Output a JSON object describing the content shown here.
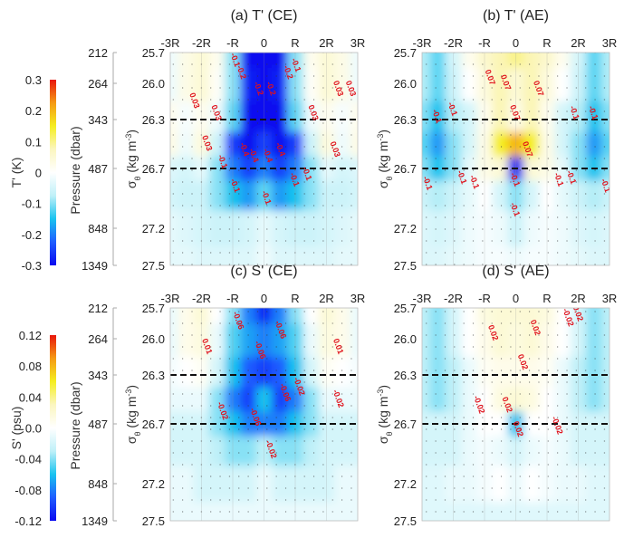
{
  "colormap": [
    "#0a0af0",
    "#1f5cff",
    "#19c3ef",
    "#bff0f8",
    "#ffffff",
    "#fbf6c0",
    "#f5ee20",
    "#f59a14",
    "#e8160c"
  ],
  "pressure_axis": {
    "label": "Pressure (dbar)",
    "ticks": [
      "212",
      "264",
      "343",
      "487",
      "848",
      "1349"
    ]
  },
  "sigma_axis": {
    "label": "σ",
    "sub": "θ",
    "unit": " (kg m",
    "sup": "-3",
    "close": ")",
    "ticks": [
      "25.7",
      "26.0",
      "26.3",
      "26.7",
      "27.2",
      "27.5"
    ],
    "values": [
      25.7,
      26.0,
      26.3,
      26.7,
      27.2,
      27.5
    ]
  },
  "x_ticks": [
    "-3R",
    "-2R",
    "-R",
    "0",
    "R",
    "2R",
    "3R"
  ],
  "colorbars": [
    {
      "label": "T' (K)",
      "ticks": [
        "0.3",
        "0.2",
        "0.1",
        "0",
        "-0.1",
        "-0.2",
        "-0.3"
      ],
      "range": [
        -0.3,
        0.3
      ]
    },
    {
      "label": "S' (psu)",
      "ticks": [
        "0.12",
        "0.08",
        "0.04",
        "0.0",
        "-0.04",
        "-0.08",
        "-0.12"
      ],
      "range": [
        -0.12,
        0.12
      ]
    }
  ],
  "chart_data": [
    {
      "type": "heatmap",
      "title": "(a) T' (CE)",
      "clim": [
        -0.3,
        0.3
      ],
      "dashed_levels": [
        26.3,
        26.7
      ],
      "x": [
        -3,
        -2.5,
        -2,
        -1.5,
        -1,
        -0.5,
        0,
        0.5,
        1,
        1.5,
        2,
        2.5,
        3
      ],
      "y": [
        25.7,
        26.0,
        26.3,
        26.5,
        26.7,
        26.9,
        27.2,
        27.5
      ],
      "z": [
        [
          -0.02,
          0.03,
          0.05,
          0.02,
          -0.1,
          -0.3,
          -0.3,
          -0.3,
          -0.1,
          0.02,
          0.05,
          0.03,
          -0.02
        ],
        [
          -0.02,
          0.03,
          0.05,
          0.01,
          -0.1,
          -0.28,
          -0.3,
          -0.28,
          -0.1,
          0.01,
          0.05,
          0.03,
          -0.02
        ],
        [
          0.02,
          -0.01,
          0.02,
          -0.02,
          -0.12,
          -0.3,
          -0.3,
          -0.3,
          -0.12,
          -0.02,
          0.02,
          -0.01,
          0.02
        ],
        [
          0.03,
          -0.02,
          0.04,
          -0.06,
          -0.25,
          -0.3,
          -0.25,
          -0.3,
          -0.25,
          -0.06,
          0.04,
          -0.02,
          0.03
        ],
        [
          -0.04,
          -0.05,
          -0.03,
          -0.1,
          -0.2,
          -0.25,
          -0.2,
          -0.25,
          -0.2,
          -0.1,
          -0.03,
          -0.05,
          -0.04
        ],
        [
          -0.05,
          -0.06,
          -0.06,
          -0.1,
          -0.15,
          -0.18,
          -0.12,
          -0.18,
          -0.15,
          -0.1,
          -0.06,
          -0.06,
          -0.05
        ],
        [
          -0.03,
          -0.04,
          -0.05,
          -0.06,
          -0.06,
          -0.05,
          -0.03,
          -0.05,
          -0.06,
          -0.06,
          -0.05,
          -0.04,
          -0.03
        ],
        [
          -0.03,
          -0.03,
          -0.04,
          -0.04,
          -0.04,
          -0.04,
          -0.02,
          -0.04,
          -0.04,
          -0.04,
          -0.04,
          -0.03,
          -0.03
        ]
      ],
      "contour_labels": [
        {
          "text": "-0.1",
          "x": -1.0,
          "y": 25.78
        },
        {
          "text": "-0.2",
          "x": -0.8,
          "y": 25.9
        },
        {
          "text": "-0.2",
          "x": -0.25,
          "y": 26.05
        },
        {
          "text": "-0.2",
          "x": 0.15,
          "y": 26.05
        },
        {
          "text": "-0.2",
          "x": 0.7,
          "y": 25.9
        },
        {
          "text": "-0.1",
          "x": 0.95,
          "y": 25.83
        },
        {
          "text": "0.03",
          "x": -2.3,
          "y": 26.15
        },
        {
          "text": "0.03",
          "x": -1.6,
          "y": 26.25
        },
        {
          "text": "0.03",
          "x": -1.9,
          "y": 26.5
        },
        {
          "text": "0.03",
          "x": 1.5,
          "y": 26.25
        },
        {
          "text": "0.03",
          "x": 2.3,
          "y": 26.05
        },
        {
          "text": "0.03",
          "x": 2.7,
          "y": 26.05
        },
        {
          "text": "0.03",
          "x": 2.2,
          "y": 26.55
        },
        {
          "text": "-0.4",
          "x": -0.7,
          "y": 26.55
        },
        {
          "text": "-0.4",
          "x": -0.4,
          "y": 26.6
        },
        {
          "text": "-0.4",
          "x": 0.05,
          "y": 26.6
        },
        {
          "text": "-0.4",
          "x": 0.45,
          "y": 26.55
        },
        {
          "text": "-0.1",
          "x": -1.4,
          "y": 26.65
        },
        {
          "text": "-0.1",
          "x": -1.0,
          "y": 26.85
        },
        {
          "text": "-0.1",
          "x": 0.9,
          "y": 26.8
        },
        {
          "text": "-0.1",
          "x": 1.3,
          "y": 26.75
        },
        {
          "text": "-0.1",
          "x": 0.0,
          "y": 26.95
        }
      ]
    },
    {
      "type": "heatmap",
      "title": "(b) T' (AE)",
      "clim": [
        -0.3,
        0.3
      ],
      "dashed_levels": [
        26.3,
        26.7
      ],
      "x": [
        -3,
        -2.5,
        -2,
        -1.5,
        -1,
        -0.5,
        0,
        0.5,
        1,
        1.5,
        2,
        2.5,
        3
      ],
      "y": [
        25.7,
        26.0,
        26.3,
        26.5,
        26.7,
        26.9,
        27.2,
        27.5
      ],
      "z": [
        [
          -0.08,
          -0.12,
          -0.05,
          0.02,
          0.06,
          0.08,
          0.1,
          0.08,
          0.06,
          0.02,
          -0.05,
          -0.12,
          -0.08
        ],
        [
          -0.08,
          -0.12,
          -0.06,
          0,
          0.04,
          0.08,
          0.05,
          0.08,
          0.04,
          0,
          -0.06,
          -0.12,
          -0.08
        ],
        [
          -0.1,
          -0.15,
          -0.08,
          -0.05,
          0.02,
          0.08,
          0.03,
          0.08,
          0.02,
          -0.05,
          -0.08,
          -0.15,
          -0.1
        ],
        [
          -0.12,
          -0.18,
          -0.1,
          -0.05,
          0.03,
          0.15,
          0.2,
          0.15,
          0.03,
          -0.05,
          -0.1,
          -0.18,
          -0.12
        ],
        [
          -0.1,
          -0.15,
          -0.1,
          -0.03,
          0.03,
          0.05,
          -0.3,
          0.05,
          0.03,
          -0.03,
          -0.1,
          -0.15,
          -0.1
        ],
        [
          -0.06,
          -0.08,
          -0.06,
          -0.03,
          0,
          -0.05,
          -0.1,
          -0.05,
          0,
          -0.03,
          -0.06,
          -0.08,
          -0.06
        ],
        [
          -0.04,
          -0.05,
          -0.04,
          -0.02,
          -0.01,
          -0.02,
          -0.06,
          -0.02,
          -0.01,
          -0.02,
          -0.04,
          -0.05,
          -0.04
        ],
        [
          -0.04,
          -0.04,
          -0.03,
          -0.02,
          -0.01,
          -0.01,
          -0.02,
          -0.01,
          -0.01,
          -0.02,
          -0.03,
          -0.04,
          -0.04
        ]
      ],
      "contour_labels": [
        {
          "text": "0.07",
          "x": -0.9,
          "y": 25.95
        },
        {
          "text": "0.07",
          "x": -0.4,
          "y": 26.0
        },
        {
          "text": "0.07",
          "x": 0.65,
          "y": 26.05
        },
        {
          "text": "0.07",
          "x": -0.1,
          "y": 26.25
        },
        {
          "text": "0.07",
          "x": 0.3,
          "y": 26.55
        },
        {
          "text": "-0.1",
          "x": -2.6,
          "y": 26.28
        },
        {
          "text": "-0.1",
          "x": -2.1,
          "y": 26.22
        },
        {
          "text": "-0.1",
          "x": 1.8,
          "y": 26.25
        },
        {
          "text": "-0.1",
          "x": 2.4,
          "y": 26.25
        },
        {
          "text": "-0.1",
          "x": -2.9,
          "y": 26.83
        },
        {
          "text": "-0.1",
          "x": -1.8,
          "y": 26.78
        },
        {
          "text": "-0.1",
          "x": -1.4,
          "y": 26.82
        },
        {
          "text": "-0.1",
          "x": 1.3,
          "y": 26.8
        },
        {
          "text": "-0.1",
          "x": 1.7,
          "y": 26.78
        },
        {
          "text": "-0.1",
          "x": 2.8,
          "y": 26.85
        },
        {
          "text": "-0.1",
          "x": -0.1,
          "y": 26.8
        },
        {
          "text": "-0.1",
          "x": -0.1,
          "y": 27.05
        }
      ]
    },
    {
      "type": "heatmap",
      "title": "(c) S' (CE)",
      "clim": [
        -0.12,
        0.12
      ],
      "dashed_levels": [
        26.3,
        26.7
      ],
      "x": [
        -3,
        -2.5,
        -2,
        -1.5,
        -1,
        -0.5,
        0,
        0.5,
        1,
        1.5,
        2,
        2.5,
        3
      ],
      "y": [
        25.7,
        26.0,
        26.3,
        26.5,
        26.7,
        26.9,
        27.2,
        27.5
      ],
      "z": [
        [
          -0.01,
          0.01,
          0.02,
          0.0,
          -0.04,
          -0.08,
          -0.11,
          -0.08,
          -0.04,
          0,
          0.02,
          0.01,
          -0.01
        ],
        [
          -0.01,
          0.01,
          0.015,
          -0.01,
          -0.05,
          -0.07,
          -0.08,
          -0.07,
          -0.05,
          -0.01,
          0.015,
          0.01,
          -0.01
        ],
        [
          -0.005,
          0,
          0.005,
          -0.02,
          -0.06,
          -0.09,
          -0.1,
          -0.09,
          -0.06,
          -0.02,
          0.005,
          0,
          -0.005
        ],
        [
          -0.01,
          -0.01,
          -0.01,
          -0.04,
          -0.08,
          -0.1,
          -0.06,
          -0.1,
          -0.08,
          -0.04,
          -0.01,
          -0.01,
          -0.01
        ],
        [
          -0.02,
          -0.02,
          -0.02,
          -0.04,
          -0.06,
          -0.08,
          -0.08,
          -0.08,
          -0.06,
          -0.04,
          -0.02,
          -0.02,
          -0.02
        ],
        [
          -0.02,
          -0.02,
          -0.02,
          -0.03,
          -0.04,
          -0.04,
          -0.03,
          -0.04,
          -0.04,
          -0.03,
          -0.02,
          -0.02,
          -0.02
        ],
        [
          -0.01,
          -0.01,
          -0.02,
          -0.02,
          -0.02,
          -0.02,
          -0.01,
          -0.02,
          -0.02,
          -0.02,
          -0.02,
          -0.01,
          -0.01
        ],
        [
          -0.01,
          -0.01,
          -0.01,
          -0.01,
          -0.01,
          -0.01,
          -0.01,
          -0.01,
          -0.01,
          -0.01,
          -0.01,
          -0.01,
          -0.01
        ]
      ],
      "contour_labels": [
        {
          "text": "-0.06",
          "x": -0.9,
          "y": 25.83
        },
        {
          "text": "-0.06",
          "x": -0.2,
          "y": 26.1
        },
        {
          "text": "-0.06",
          "x": 0.45,
          "y": 25.92
        },
        {
          "text": "0.01",
          "x": -1.9,
          "y": 26.07
        },
        {
          "text": "0.01",
          "x": 2.3,
          "y": 26.07
        },
        {
          "text": "-0.06",
          "x": 0.6,
          "y": 26.45
        },
        {
          "text": "-0.02",
          "x": 1.05,
          "y": 26.4
        },
        {
          "text": "-0.02",
          "x": -1.4,
          "y": 26.6
        },
        {
          "text": "-0.06",
          "x": -0.35,
          "y": 26.65
        },
        {
          "text": "-0.02",
          "x": 0.15,
          "y": 26.92
        },
        {
          "text": "-0.02",
          "x": 2.3,
          "y": 26.5
        }
      ]
    },
    {
      "type": "heatmap",
      "title": "(d) S' (AE)",
      "clim": [
        -0.12,
        0.12
      ],
      "dashed_levels": [
        26.3,
        26.7
      ],
      "x": [
        -3,
        -2.5,
        -2,
        -1.5,
        -1,
        -0.5,
        0,
        0.5,
        1,
        1.5,
        2,
        2.5,
        3
      ],
      "y": [
        25.7,
        26.0,
        26.3,
        26.5,
        26.7,
        26.9,
        27.2,
        27.5
      ],
      "z": [
        [
          -0.03,
          -0.04,
          -0.02,
          0,
          0.015,
          0.02,
          0.02,
          0.02,
          0.015,
          0,
          -0.02,
          -0.04,
          -0.03
        ],
        [
          -0.03,
          -0.04,
          -0.02,
          0,
          0.01,
          0.02,
          0.015,
          0.02,
          0.01,
          0,
          -0.02,
          -0.04,
          -0.03
        ],
        [
          -0.03,
          -0.04,
          -0.03,
          -0.01,
          0.005,
          0.01,
          0.01,
          0.01,
          0.005,
          -0.01,
          -0.03,
          -0.04,
          -0.03
        ],
        [
          -0.03,
          -0.04,
          -0.03,
          -0.01,
          0,
          0.015,
          0.02,
          0.015,
          0,
          -0.01,
          -0.03,
          -0.04,
          -0.03
        ],
        [
          -0.02,
          -0.02,
          -0.02,
          -0.01,
          0,
          0,
          -0.06,
          0,
          0,
          -0.01,
          -0.02,
          -0.02,
          -0.02
        ],
        [
          -0.02,
          -0.02,
          -0.02,
          -0.01,
          -0.005,
          -0.01,
          -0.02,
          -0.01,
          -0.005,
          -0.01,
          -0.02,
          -0.02,
          -0.02
        ],
        [
          -0.015,
          -0.015,
          -0.01,
          -0.01,
          -0.005,
          0,
          -0.01,
          0,
          -0.005,
          -0.01,
          -0.01,
          -0.015,
          -0.015
        ],
        [
          -0.015,
          -0.015,
          -0.015,
          -0.015,
          -0.015,
          -0.015,
          -0.015,
          -0.015,
          -0.015,
          -0.015,
          -0.015,
          -0.015,
          -0.015
        ]
      ],
      "contour_labels": [
        {
          "text": "0.02",
          "x": -0.8,
          "y": 25.95
        },
        {
          "text": "0.02",
          "x": 0.55,
          "y": 25.9
        },
        {
          "text": "0.02",
          "x": 0.15,
          "y": 26.2
        },
        {
          "text": "-0.02",
          "x": 1.6,
          "y": 25.8
        },
        {
          "text": "-0.02",
          "x": -1.25,
          "y": 26.55
        },
        {
          "text": "0.02",
          "x": -0.35,
          "y": 26.55
        },
        {
          "text": "0.02",
          "x": 0.0,
          "y": 26.75
        },
        {
          "text": "-0.02",
          "x": 1.25,
          "y": 26.72
        },
        {
          "text": "-0.02",
          "x": 1.9,
          "y": 25.75
        }
      ]
    }
  ]
}
